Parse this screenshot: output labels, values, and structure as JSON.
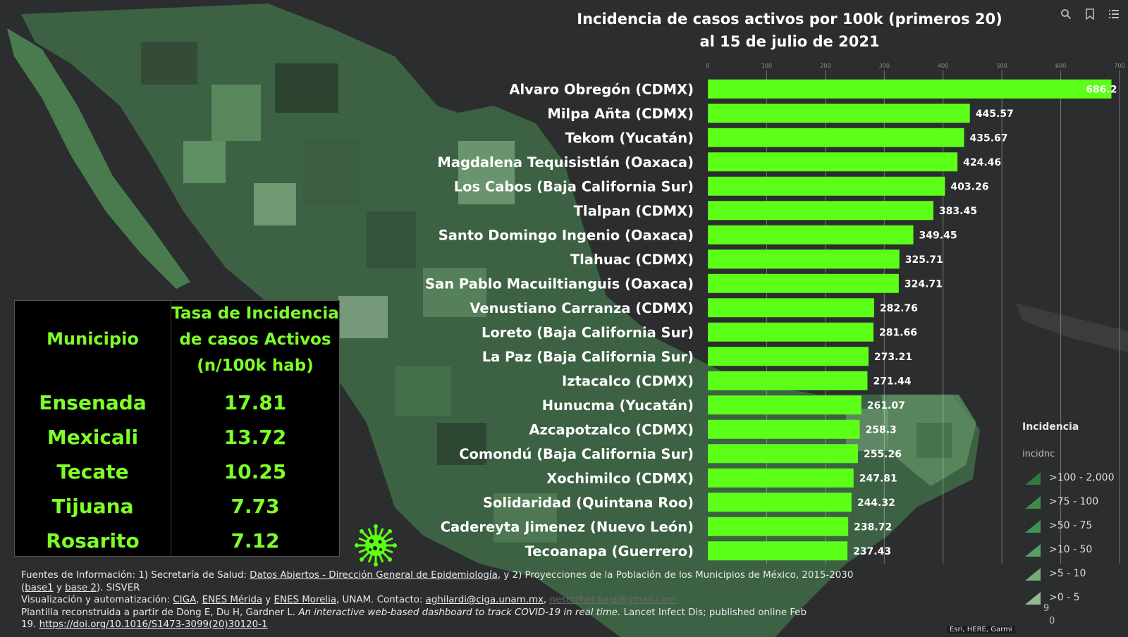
{
  "toolbar": {
    "search_icon": "search-icon",
    "bookmark_icon": "bookmark-icon",
    "list_icon": "list-icon"
  },
  "chart_data": {
    "type": "bar",
    "orientation": "horizontal",
    "title": "Incidencia de casos activos por 100k (primeros 20)",
    "subtitle": "al 15 de julio de 2021",
    "categories": [
      "Alvaro Obregón (CDMX)",
      "Milpa Añta (CDMX)",
      "Tekom (Yucatán)",
      "Magdalena Tequisistlán (Oaxaca)",
      "Los Cabos (Baja California Sur)",
      "Tlalpan (CDMX)",
      "Santo Domingo Ingenio (Oaxaca)",
      "Tlahuac (CDMX)",
      "San Pablo Macuiltianguis (Oaxaca)",
      "Venustiano Carranza (CDMX)",
      "Loreto (Baja California Sur)",
      "La Paz (Baja California Sur)",
      "Iztacalco (CDMX)",
      "Hunucma (Yucatán)",
      "Azcapotzalco (CDMX)",
      "Comondú (Baja California Sur)",
      "Xochimilco (CDMX)",
      "Solidaridad (Quintana Roo)",
      "Cadereyta Jimenez (Nuevo León)",
      "Tecoanapa (Guerrero)"
    ],
    "values": [
      686.2,
      445.57,
      435.67,
      424.46,
      403.26,
      383.45,
      349.45,
      325.71,
      324.71,
      282.76,
      281.66,
      273.21,
      271.44,
      261.07,
      258.3,
      255.26,
      247.81,
      244.32,
      238.72,
      237.43
    ],
    "value_labels": [
      "686.2",
      "445.57",
      "435.67",
      "424.46",
      "403.26",
      "383.45",
      "349.45",
      "325.71",
      "324.71",
      "282.76",
      "281.66",
      "273.21",
      "271.44",
      "261.07",
      "258.3",
      "255.26",
      "247.81",
      "244.32",
      "238.72",
      "237.43"
    ],
    "xlim": [
      0,
      700
    ],
    "ticks": [
      "0",
      "100",
      "200",
      "300",
      "400",
      "500",
      "600",
      "700"
    ],
    "bar_color": "#5cff17"
  },
  "table": {
    "header_municipio": "Municipio",
    "header_tasa": [
      "Tasa de Incidencia",
      "de casos Activos",
      "(n/100k hab)"
    ],
    "rows": [
      {
        "municipio": "Ensenada",
        "tasa": "17.81"
      },
      {
        "municipio": "Mexicali",
        "tasa": "13.72"
      },
      {
        "municipio": "Tecate",
        "tasa": "10.25"
      },
      {
        "municipio": "Tijuana",
        "tasa": "7.73"
      },
      {
        "municipio": "Rosarito",
        "tasa": "7.12"
      }
    ],
    "accent_color": "#7cff2a"
  },
  "legend": {
    "title": "Incidencia",
    "field": "incidnc",
    "items": [
      {
        "label": ">100 - 2,000",
        "color": "#2f7a3c"
      },
      {
        "label": ">75 - 100",
        "color": "#3f8a4a"
      },
      {
        "label": ">50 - 75",
        "color": "#3e9452"
      },
      {
        "label": ">10 - 50",
        "color": "#55a062"
      },
      {
        "label": ">5 - 10",
        "color": "#75ad7a"
      },
      {
        "label": ">0 - 5",
        "color": "#93b994"
      }
    ],
    "extra_9": "9",
    "extra_0": "0"
  },
  "footer": {
    "l1_pre": "Fuentes de Información: 1) Secretaría de Salud: ",
    "l1_link": "Datos Abiertos - Dirección General de Epidemiología",
    "l1_post": ", y 2) Proyecciones de la Población de los Municipios de México, 2015-2030",
    "l2_paren": "(",
    "l2_base1": "base1",
    "l2_y": " y ",
    "l2_base2": "base 2",
    "l2_post": "). SISVER",
    "l3_pre": "Visualización y automatización: ",
    "l3_ciga": "CIGA",
    "l3_comma1": ", ",
    "l3_merida": "ENES Mérida",
    "l3_y": " y ",
    "l3_morelia": "ENES Morelia",
    "l3_mid": ", UNAM. Contacto: ",
    "l3_email": "aghilardi@ciga.unam.mx",
    "l3_comma2": ", ",
    "l3_email2": "nestorher.baja@gmail.com",
    "l4_pre": "Plantilla reconstruida a partir de Dong E, Du H, Gardner L. ",
    "l4_italic": "An interactive web-based dashboard to track COVID-19 in real time.",
    "l4_post": " Lancet Infect Dis; published online Feb",
    "l5_pre": "19. ",
    "l5_link": "https://doi.org/10.1016/S1473-3099(20)30120-1"
  },
  "attribution": "Esri, HERE, Garmi"
}
